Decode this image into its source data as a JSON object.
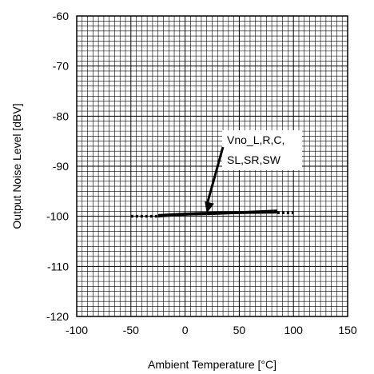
{
  "chart_data": {
    "type": "line",
    "xlabel": "Ambient Temperature [°C]",
    "ylabel": "Output Noise Level [dBV]",
    "xlim": [
      -100,
      150
    ],
    "ylim": [
      -120,
      -60
    ],
    "x_ticks": [
      "-100",
      "-50",
      "0",
      "50",
      "100",
      "150"
    ],
    "y_ticks": [
      "-60",
      "-70",
      "-80",
      "-90",
      "-100",
      "-110",
      "-120"
    ],
    "grid": true,
    "series": [
      {
        "x": [
          -25,
          0,
          25,
          50,
          85
        ],
        "y": [
          -100,
          -99.6,
          -99.4,
          -99.3,
          -99.1
        ]
      },
      {
        "x": [
          -25,
          0,
          25,
          50,
          85
        ],
        "y": [
          -99.8,
          -99.5,
          -99.3,
          -99.2,
          -98.9
        ]
      },
      {
        "x": [
          -25,
          0,
          25,
          50,
          85
        ],
        "y": [
          -99.9,
          -99.6,
          -99.5,
          -99.3,
          -99.2
        ]
      }
    ],
    "limit_lines": [
      {
        "x": [
          -50,
          -25
        ],
        "y": [
          -100,
          -100
        ],
        "style": "dotted"
      },
      {
        "x": [
          85,
          100
        ],
        "y": [
          -99.3,
          -99.3
        ],
        "style": "dotted"
      }
    ],
    "annotation": {
      "lines": [
        "Vno_L,R,C,",
        "SL,SR,SW"
      ],
      "points_to": {
        "x": 20,
        "y": -99.4
      }
    }
  }
}
